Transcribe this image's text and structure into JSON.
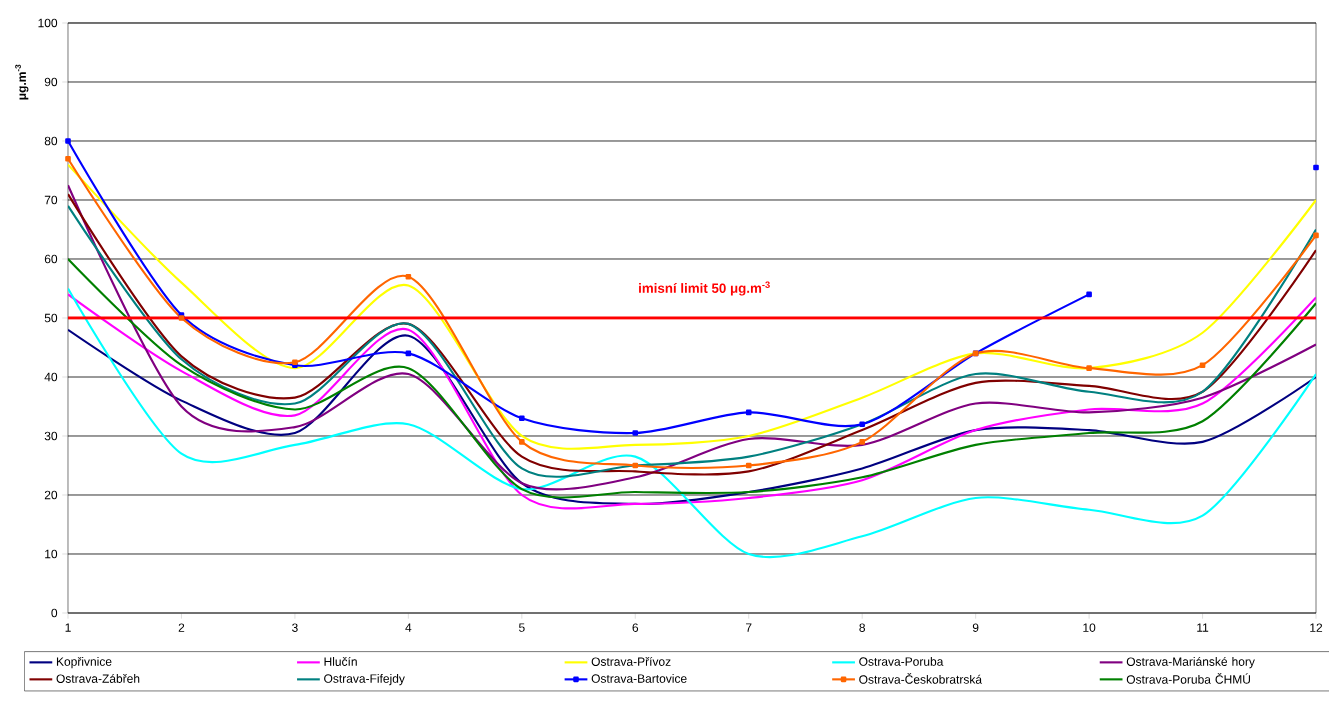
{
  "chart_data": {
    "type": "line",
    "ylabel": "μg.m$^{-3}$",
    "x": [
      1,
      2,
      3,
      4,
      5,
      6,
      7,
      8,
      9,
      10,
      11,
      12
    ],
    "xlim": [
      1,
      12
    ],
    "xticks": [
      1,
      2,
      3,
      4,
      5,
      6,
      7,
      8,
      9,
      10,
      11,
      12
    ],
    "ylim": [
      0,
      100
    ],
    "yticks": [
      0,
      10,
      20,
      30,
      40,
      50,
      60,
      70,
      80,
      90,
      100
    ],
    "grid": "y",
    "legend": "bottom",
    "line_style": "solid",
    "ref_lines": [
      {
        "axis": "y",
        "value": 50,
        "label": "imisní limit 50 μg.m$^{-3}$",
        "color": "#ff0000"
      }
    ],
    "series": [
      {
        "name": "Kopřivnice",
        "color": "#000080",
        "values": [
          48,
          36,
          30.5,
          47,
          22,
          18.5,
          20.5,
          24.5,
          31,
          31,
          29,
          40
        ]
      },
      {
        "name": "Hlučín",
        "color": "#ff00ff",
        "values": [
          54,
          41,
          33.5,
          48,
          20,
          18.5,
          19.5,
          22.5,
          31,
          34.5,
          35.5,
          53.5
        ]
      },
      {
        "name": "Ostrava-Přívoz",
        "color": "#ffff00",
        "values": [
          76,
          56,
          41.5,
          55.5,
          30,
          28.5,
          30,
          36.5,
          44,
          41.5,
          47.5,
          70
        ]
      },
      {
        "name": "Ostrava-Poruba",
        "color": "#00ffff",
        "values": [
          55,
          27,
          28.5,
          32,
          21,
          26.5,
          10,
          13,
          19.5,
          17.5,
          16.5,
          40.5
        ]
      },
      {
        "name": "Ostrava-Mariánské hory",
        "color": "#800080",
        "values": [
          72.5,
          35,
          31.5,
          40.5,
          22,
          23,
          29.5,
          28.5,
          35.5,
          34,
          36.5,
          45.5
        ]
      },
      {
        "name": "Ostrava-Zábřeh",
        "color": "#800000",
        "values": [
          71,
          43.5,
          36.5,
          49,
          26.5,
          24,
          24,
          31,
          39,
          38.5,
          37.5,
          61.5
        ]
      },
      {
        "name": "Ostrava-Fifejdy",
        "color": "#008080",
        "values": [
          69,
          43,
          35.5,
          49,
          24.5,
          25,
          26.5,
          32,
          40.5,
          37.5,
          37.5,
          65
        ]
      },
      {
        "name": "Ostrava-Bartovice",
        "color": "#0000ff",
        "marker": "square",
        "values": [
          80,
          50.5,
          42,
          44,
          33,
          30.5,
          34,
          32,
          44,
          54,
          null,
          75.5
        ]
      },
      {
        "name": "Ostrava-Českobratrská",
        "color": "#ff6600",
        "marker": "square",
        "values": [
          77,
          50,
          42.5,
          57,
          29,
          25,
          25,
          29,
          44,
          41.5,
          42,
          64
        ]
      },
      {
        "name": "Ostrava-Poruba ČHMÚ",
        "color": "#008000",
        "values": [
          60,
          42,
          34.5,
          41.5,
          21,
          20.5,
          20.5,
          23,
          28.5,
          30.5,
          32.5,
          52.5
        ]
      }
    ]
  }
}
